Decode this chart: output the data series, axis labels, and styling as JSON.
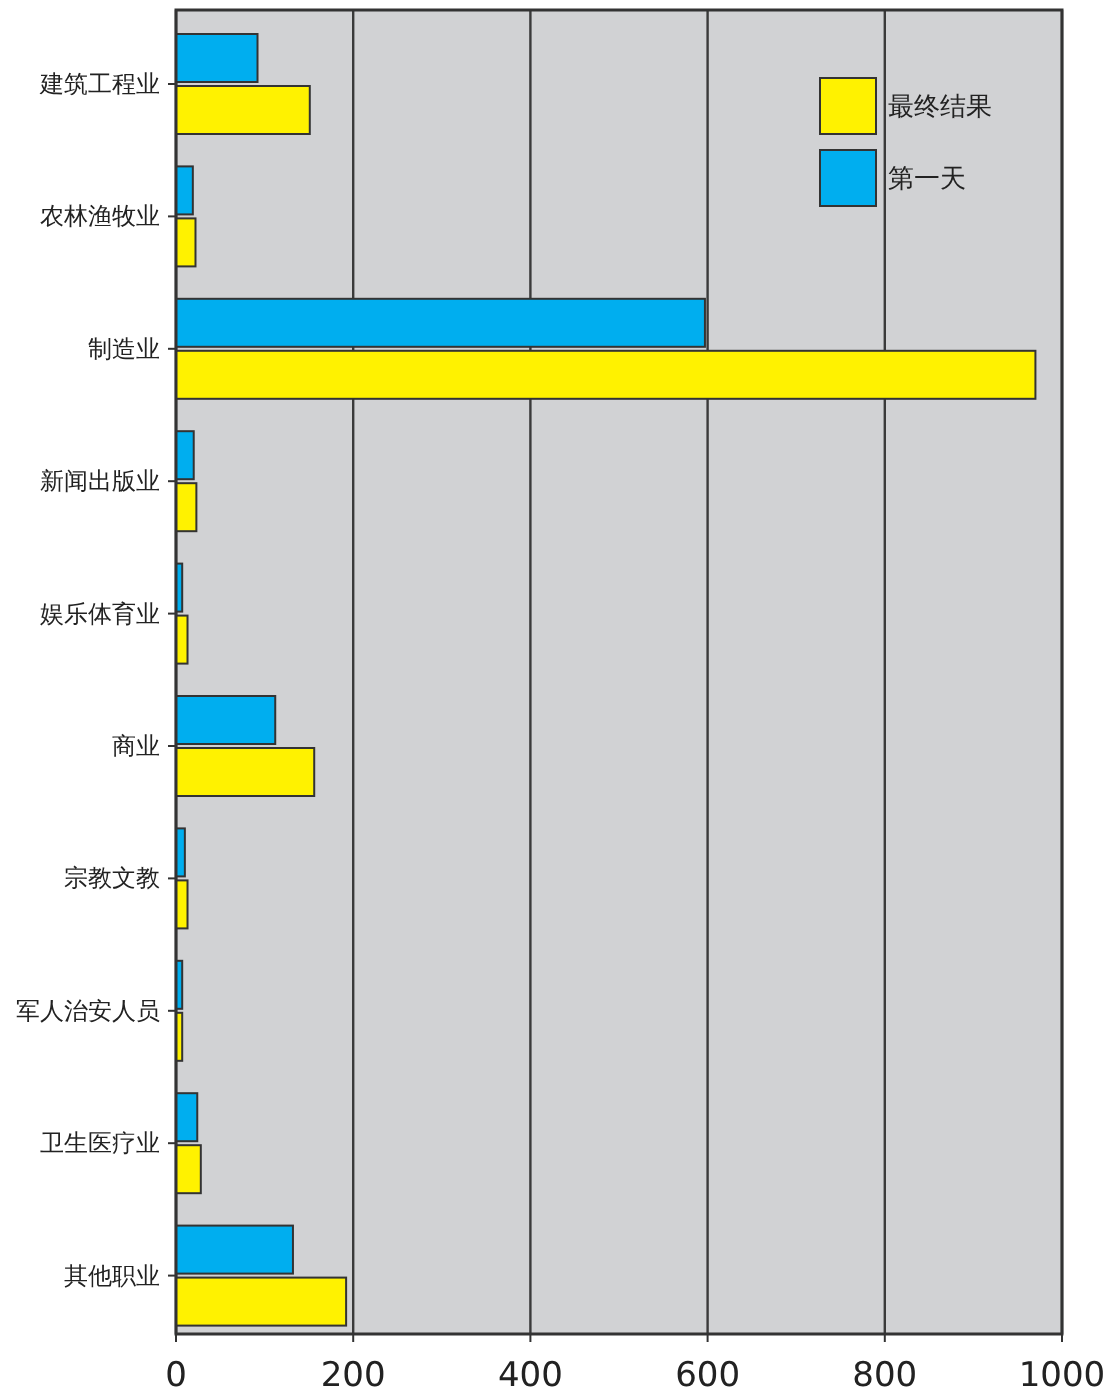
{
  "chart_data": {
    "type": "bar",
    "orientation": "horizontal",
    "categories": [
      "建筑工程业",
      "农林渔牧业",
      "制造业",
      "新闻出版业",
      "娱乐体育业",
      "商业",
      "宗教文教",
      "军人治安人员",
      "卫生医疗业",
      "其他职业"
    ],
    "series": [
      {
        "name": "最终结果",
        "color": "#fff200",
        "values": [
          151,
          22,
          970,
          23,
          13,
          156,
          13,
          7,
          28,
          192
        ]
      },
      {
        "name": "第一天",
        "color": "#00aeef",
        "values": [
          92,
          19,
          597,
          20,
          7,
          112,
          10,
          7,
          24,
          132
        ]
      }
    ],
    "xlim": [
      0,
      1000
    ],
    "xticks": [
      0,
      200,
      400,
      600,
      800,
      1000
    ],
    "grid": "x",
    "legend": "top right"
  }
}
